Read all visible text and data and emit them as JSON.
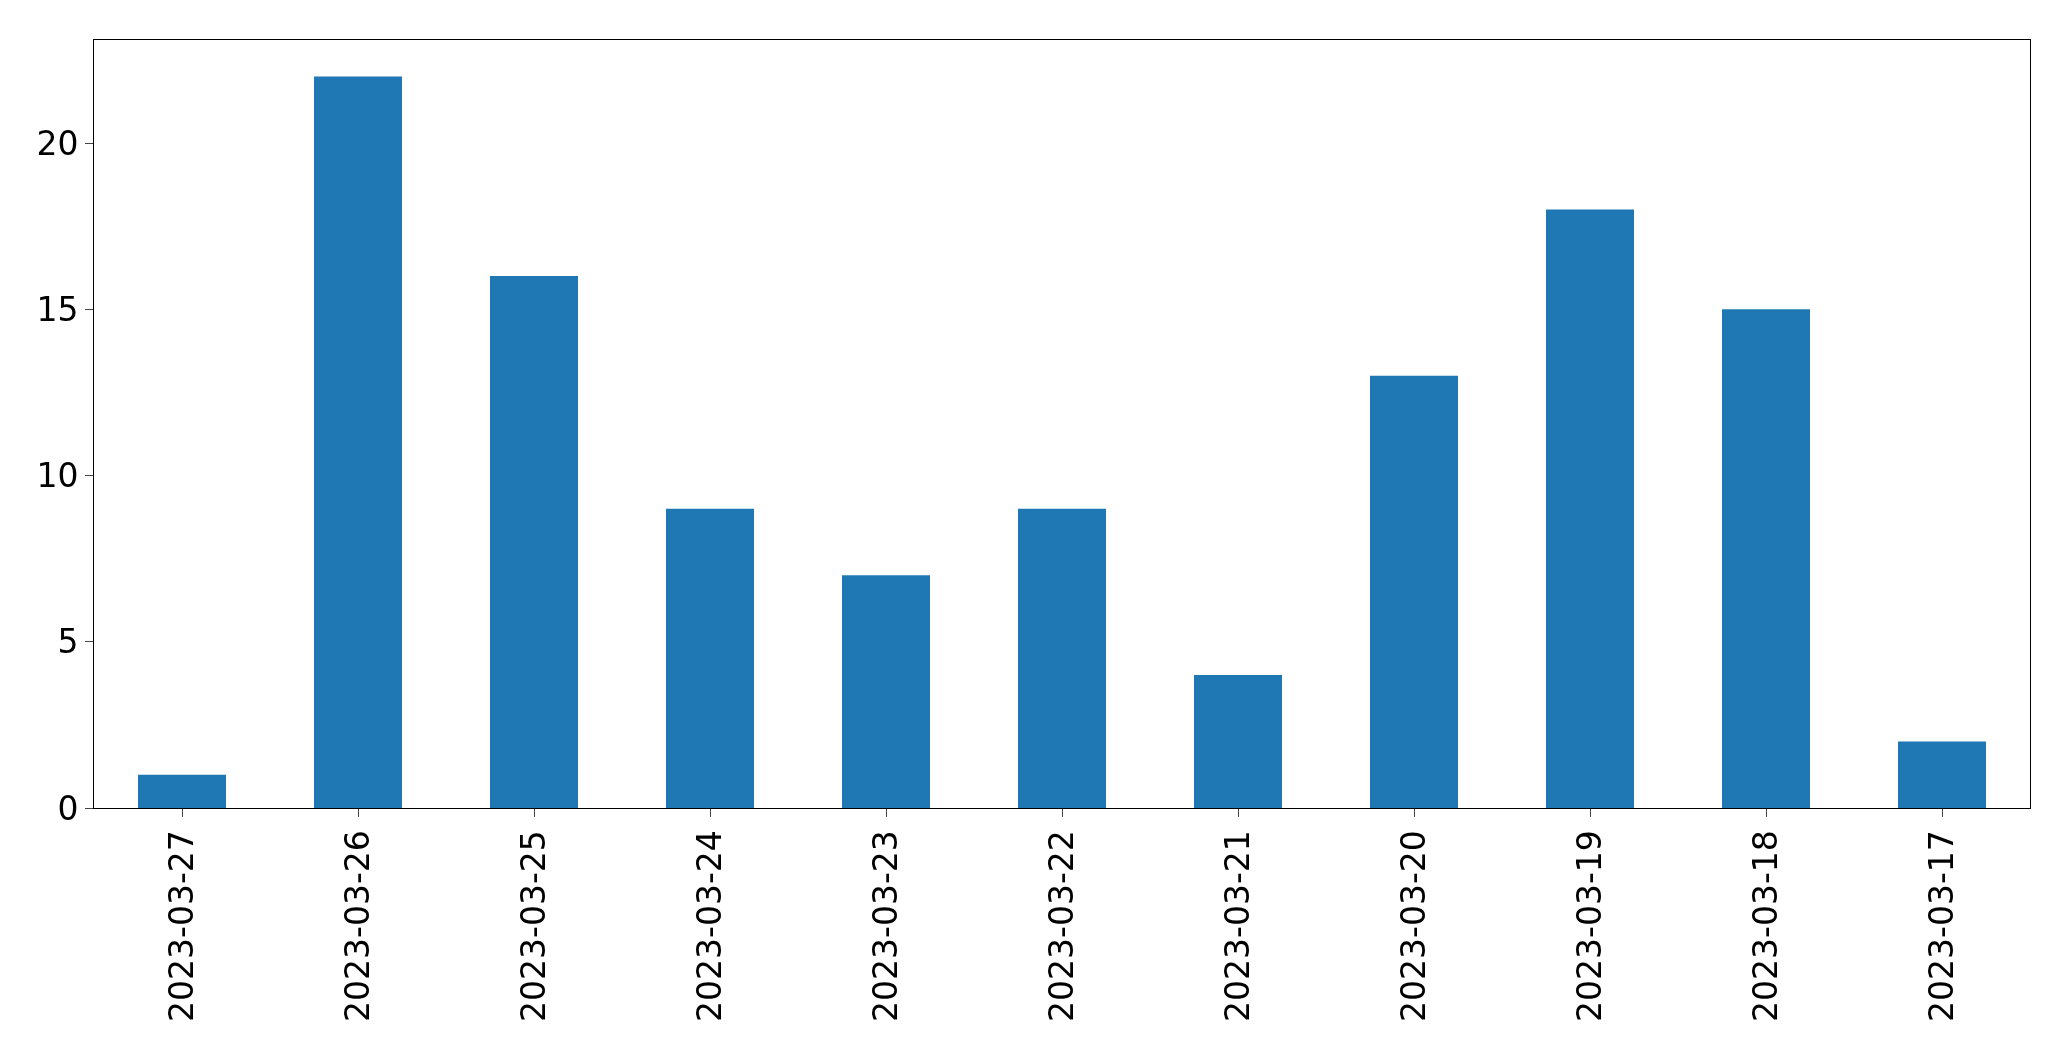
{
  "chart_data": {
    "type": "bar",
    "categories": [
      "2023-03-27",
      "2023-03-26",
      "2023-03-25",
      "2023-03-24",
      "2023-03-23",
      "2023-03-22",
      "2023-03-21",
      "2023-03-20",
      "2023-03-19",
      "2023-03-18",
      "2023-03-17"
    ],
    "values": [
      1,
      22,
      16,
      9,
      7,
      9,
      4,
      13,
      18,
      15,
      2
    ],
    "color": "#1f77b4",
    "ylim": [
      0,
      23.1
    ],
    "yticks": [
      0,
      5,
      10,
      15,
      20
    ]
  }
}
